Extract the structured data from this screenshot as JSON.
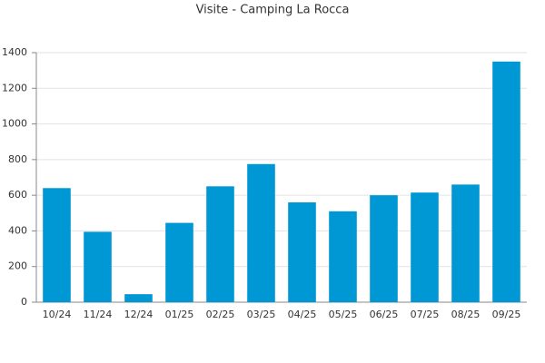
{
  "chart_data": {
    "type": "bar",
    "title": "Visite - Camping La Rocca",
    "categories": [
      "10/24",
      "11/24",
      "12/24",
      "01/25",
      "02/25",
      "03/25",
      "04/25",
      "05/25",
      "06/25",
      "07/25",
      "08/25",
      "09/25"
    ],
    "values": [
      640,
      395,
      45,
      445,
      650,
      775,
      560,
      510,
      600,
      615,
      660,
      1350
    ],
    "color": "#0098d4",
    "ylim": [
      0,
      1400
    ],
    "yticks": [
      0,
      200,
      400,
      600,
      800,
      1000,
      1200,
      1400
    ],
    "grid": true
  }
}
